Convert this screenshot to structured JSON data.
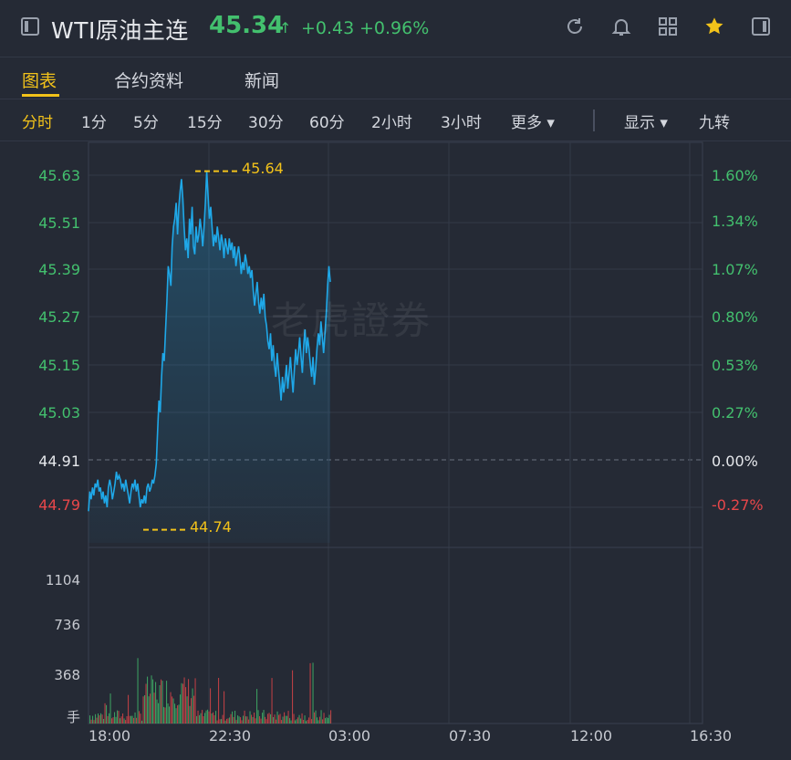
{
  "header": {
    "title": "WTI原油主连",
    "price": "45.34",
    "arrow": "↑",
    "change": "+0.43",
    "change_pct": "+0.96%"
  },
  "tabs": [
    "图表",
    "合约资料",
    "新闻"
  ],
  "periods": [
    "分时",
    "1分",
    "5分",
    "15分",
    "30分",
    "60分",
    "2小时",
    "3小时",
    "更多 ▾",
    "显示 ▾",
    "九转"
  ],
  "watermark": "老虎證券",
  "colors": {
    "up": "#43c06e",
    "down": "#e8474a",
    "accent": "#f2c21a",
    "line": "#1fa8e8"
  },
  "chart_data": {
    "type": "line",
    "price_ticks": [
      "45.63",
      "45.51",
      "45.39",
      "45.27",
      "45.15",
      "45.03",
      "44.91",
      "44.79"
    ],
    "pct_ticks": [
      "1.60%",
      "1.34%",
      "1.07%",
      "0.80%",
      "0.53%",
      "0.27%",
      "0.00%",
      "-0.27%"
    ],
    "prev_close": 44.91,
    "high_label": "45.64",
    "low_label": "44.74",
    "volume_ticks": [
      "1104",
      "736",
      "368",
      "手"
    ],
    "time_ticks": [
      "18:00",
      "22:30",
      "03:00",
      "07:30",
      "12:00",
      "16:30"
    ],
    "x_minutes_range": [
      0,
      1380
    ],
    "price": [
      44.78,
      44.83,
      44.81,
      44.84,
      44.82,
      44.85,
      44.84,
      44.86,
      44.83,
      44.84,
      44.81,
      44.83,
      44.8,
      44.82,
      44.79,
      44.84,
      44.86,
      44.84,
      44.81,
      44.83,
      44.85,
      44.88,
      44.86,
      44.87,
      44.86,
      44.84,
      44.85,
      44.83,
      44.86,
      44.84,
      44.82,
      44.8,
      44.83,
      44.85,
      44.84,
      44.86,
      44.83,
      44.85,
      44.82,
      44.79,
      44.81,
      44.8,
      44.82,
      44.8,
      44.84,
      44.85,
      44.83,
      44.84,
      44.86,
      44.85,
      44.87,
      44.9,
      44.98,
      45.06,
      45.03,
      45.12,
      45.18,
      45.16,
      45.24,
      45.31,
      45.4,
      45.38,
      45.35,
      45.45,
      45.5,
      45.52,
      45.56,
      45.48,
      45.55,
      45.59,
      45.62,
      45.57,
      45.5,
      45.44,
      45.47,
      45.42,
      45.52,
      45.48,
      45.55,
      45.45,
      45.43,
      45.5,
      45.46,
      45.48,
      45.52,
      45.49,
      45.45,
      45.5,
      45.56,
      45.64,
      45.58,
      45.52,
      45.55,
      45.5,
      45.45,
      45.48,
      45.46,
      45.5,
      45.47,
      45.44,
      45.48,
      45.46,
      45.42,
      45.47,
      45.45,
      45.43,
      45.47,
      45.44,
      45.46,
      45.42,
      45.45,
      45.4,
      45.43,
      45.45,
      45.42,
      45.38,
      45.41,
      45.39,
      45.43,
      45.41,
      45.38,
      45.4,
      45.37,
      45.39,
      45.34,
      45.3,
      45.33,
      45.36,
      45.31,
      45.28,
      45.32,
      45.29,
      45.33,
      45.27,
      45.25,
      45.21,
      45.19,
      45.23,
      45.16,
      45.2,
      45.15,
      45.12,
      45.18,
      45.14,
      45.1,
      45.06,
      45.12,
      45.08,
      45.11,
      45.15,
      45.09,
      45.13,
      45.17,
      45.12,
      45.08,
      45.14,
      45.19,
      45.15,
      45.18,
      45.22,
      45.17,
      45.13,
      45.2,
      45.24,
      45.18,
      45.22,
      45.19,
      45.15,
      45.12,
      45.17,
      45.1,
      45.14,
      45.19,
      45.23,
      45.2,
      45.26,
      45.22,
      45.18,
      45.23,
      45.28,
      45.35,
      45.4,
      45.36
    ]
  }
}
